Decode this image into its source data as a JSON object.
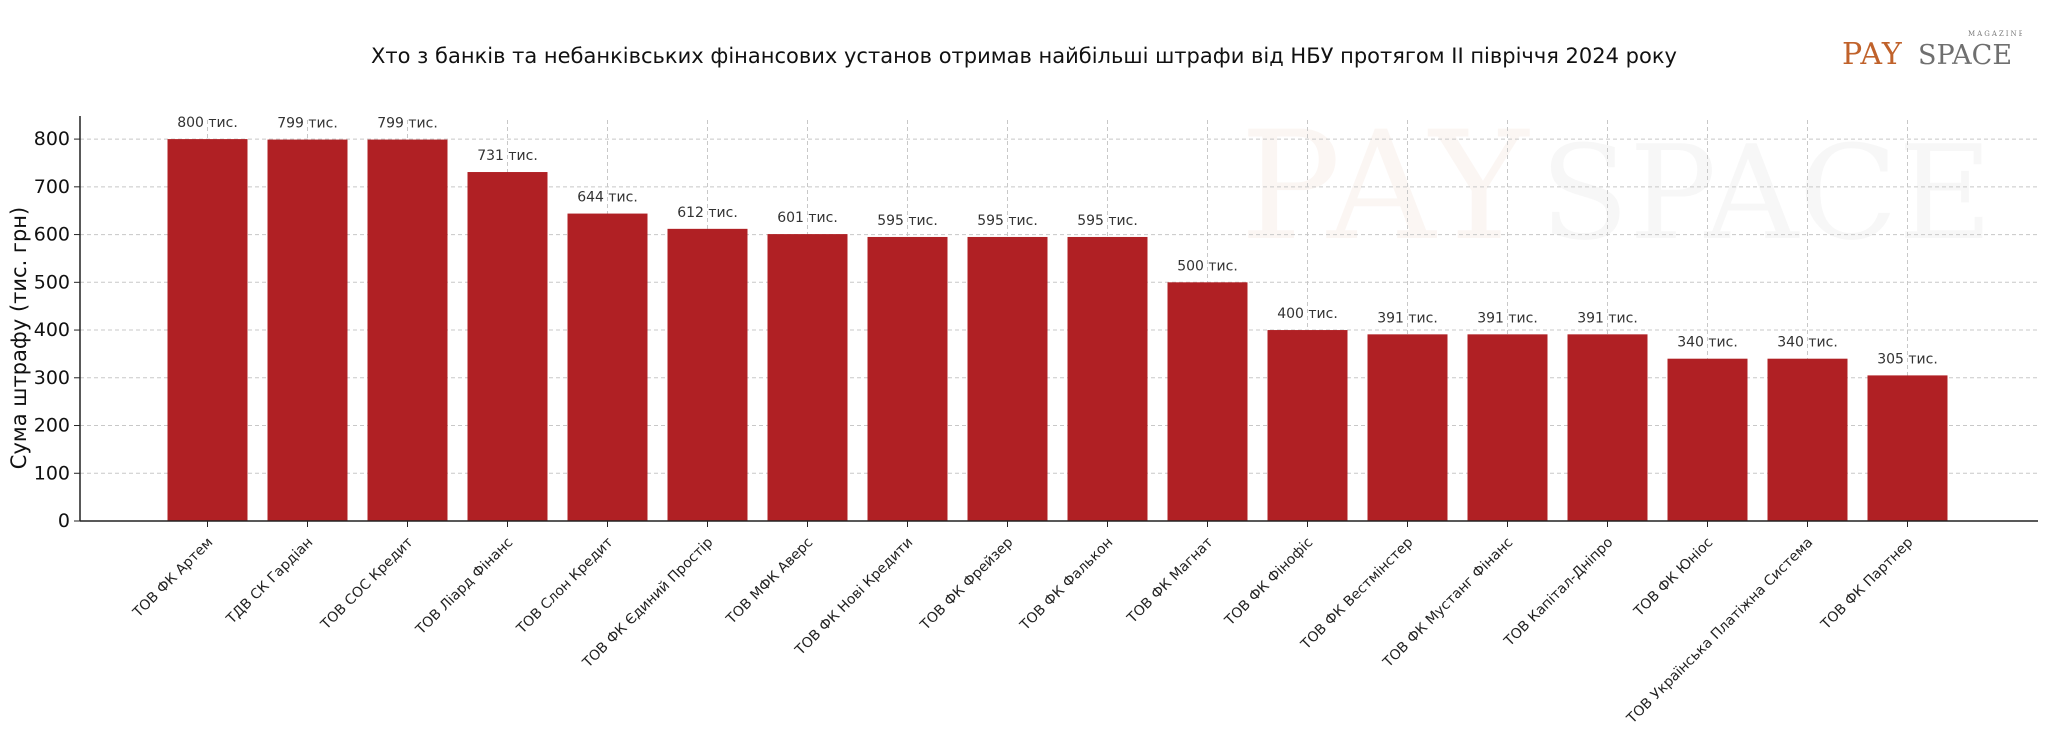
{
  "brand": {
    "logo_pay": "PAY",
    "logo_space": "SPACE",
    "logo_small": "MAGAZINE",
    "colors": {
      "accent": "#c0622b",
      "text": "#6f6f6f"
    }
  },
  "chart_data": {
    "type": "bar",
    "title": "Хто з банків та небанківських фінансових установ отримав найбільші штрафи від НБУ протягом II півріччя 2024 року",
    "xlabel": "",
    "ylabel": "Сума штрафу (тис. грн)",
    "ylim": [
      0,
      840
    ],
    "yticks": [
      0,
      100,
      200,
      300,
      400,
      500,
      600,
      700,
      800
    ],
    "grid": true,
    "bar_color": "#b02024",
    "categories": [
      "ТОВ ФК Артем",
      "ТДВ СК Гардіан",
      "ТОВ СОС Кредит",
      "ТОВ Ліард Фінанс",
      "ТОВ Слон Кредит",
      "ТОВ ФК Єдиний Простір",
      "ТОВ МФК Аверс",
      "ТОВ ФК Нові Кредити",
      "ТОВ ФК Фрейзер",
      "ТОВ ФК Фалькон",
      "ТОВ ФК Магнат",
      "ТОВ ФК Фінофіс",
      "ТОВ ФК Вестмінстер",
      "ТОВ ФК Мустанг Фінанс",
      "ТОВ Капітал-Дніпро",
      "ТОВ ФК Юніос",
      "ТОВ Українська Платіжна Система",
      "ТОВ ФК Партнер"
    ],
    "values": [
      800,
      799,
      799,
      731,
      644,
      612,
      601,
      595,
      595,
      595,
      500,
      400,
      391,
      391,
      391,
      340,
      340,
      305
    ],
    "value_labels": [
      "800 тис.",
      "799 тис.",
      "799 тис.",
      "731 тис.",
      "644 тис.",
      "612 тис.",
      "601 тис.",
      "595 тис.",
      "595 тис.",
      "595 тис.",
      "500 тис.",
      "400 тис.",
      "391 тис.",
      "391 тис.",
      "391 тис.",
      "340 тис.",
      "340 тис.",
      "305 тис."
    ]
  }
}
